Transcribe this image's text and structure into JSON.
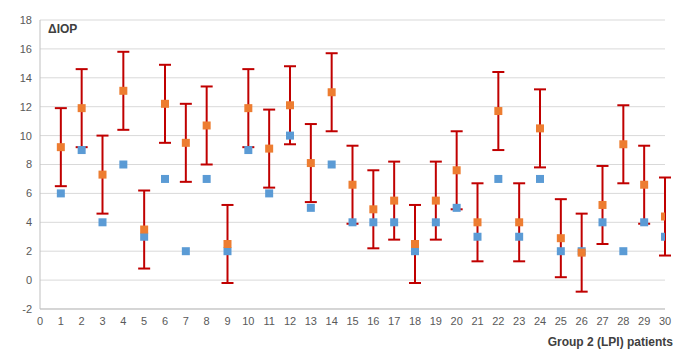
{
  "chart_data": {
    "type": "scatter",
    "x_label": "Group 2 (LPI) patients",
    "y_label": "ΔIOP",
    "x": [
      1,
      2,
      3,
      4,
      5,
      6,
      7,
      8,
      9,
      10,
      11,
      12,
      13,
      14,
      15,
      16,
      17,
      18,
      19,
      20,
      21,
      22,
      23,
      24,
      25,
      26,
      27,
      28,
      29,
      30
    ],
    "xlim": [
      0,
      30
    ],
    "xticks": [
      0,
      1,
      2,
      3,
      4,
      5,
      6,
      7,
      8,
      9,
      10,
      11,
      12,
      13,
      14,
      15,
      16,
      17,
      18,
      19,
      20,
      21,
      22,
      23,
      24,
      25,
      26,
      27,
      28,
      29,
      30
    ],
    "ylim": [
      -2,
      18
    ],
    "yticks": [
      -2,
      0,
      2,
      4,
      6,
      8,
      10,
      12,
      14,
      16,
      18
    ],
    "grid": true,
    "marker": "square",
    "series": [
      {
        "color": "#5b9bd5",
        "values": [
          6,
          9,
          4,
          8,
          3,
          7,
          2,
          7,
          2,
          9,
          6,
          10,
          5,
          8,
          4,
          4,
          4,
          2,
          4,
          5,
          3,
          7,
          3,
          7,
          2,
          2,
          4,
          2,
          4,
          3
        ]
      },
      {
        "color": "#ed7d31",
        "values": [
          9.2,
          11.9,
          7.3,
          13.1,
          3.5,
          12.2,
          9.5,
          10.7,
          2.5,
          11.9,
          9.1,
          12.1,
          8.1,
          13,
          6.6,
          4.9,
          5.5,
          2.5,
          5.5,
          7.6,
          4,
          11.7,
          4,
          10.5,
          2.9,
          1.9,
          5.2,
          9.4,
          6.6,
          4.4
        ],
        "error": [
          2.7,
          2.7,
          2.7,
          2.7,
          2.7,
          2.7,
          2.7,
          2.7,
          2.7,
          2.7,
          2.7,
          2.7,
          2.7,
          2.7,
          2.7,
          2.7,
          2.7,
          2.7,
          2.7,
          2.7,
          2.7,
          2.7,
          2.7,
          2.7,
          2.7,
          2.7,
          2.7,
          2.7,
          2.7,
          2.7
        ]
      }
    ]
  }
}
